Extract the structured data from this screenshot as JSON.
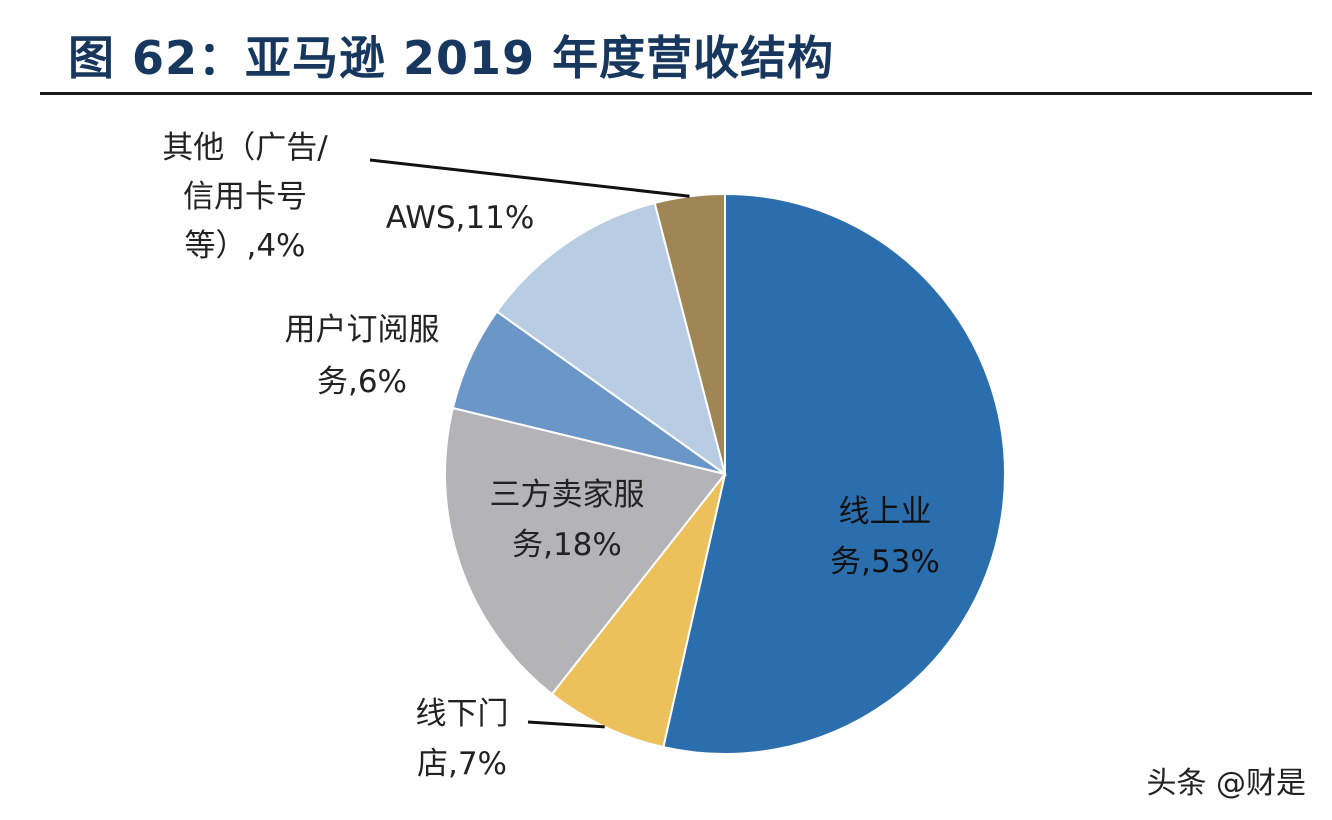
{
  "title": "图 62：亚马逊 2019 年度营收结构",
  "watermark": "头条 @财是",
  "chart_data": {
    "type": "pie",
    "title": "图 62：亚马逊 2019 年度营收结构",
    "slices": [
      {
        "label_lines": [
          "线上业",
          "务,53%"
        ],
        "name": "线上业务",
        "value": 53,
        "color": "#2a6eae"
      },
      {
        "label_lines": [
          "线下门",
          "店,7%"
        ],
        "name": "线下门店",
        "value": 7,
        "color": "#ecc05a"
      },
      {
        "label_lines": [
          "三方卖家服",
          "务,18%"
        ],
        "name": "三方卖家服务",
        "value": 18,
        "color": "#b4b4b8"
      },
      {
        "label_lines": [
          "用户订阅服",
          "务,6%"
        ],
        "name": "用户订阅服务",
        "value": 6,
        "color": "#6b96c8"
      },
      {
        "label_lines": [
          "AWS,11%"
        ],
        "name": "AWS",
        "value": 11,
        "color": "#b8cce4"
      },
      {
        "label_lines": [
          "其他（广告/",
          "信用卡号",
          "等）,4%"
        ],
        "name": "其他（广告/信用卡号等）",
        "value": 4,
        "color": "#a08654"
      }
    ]
  }
}
